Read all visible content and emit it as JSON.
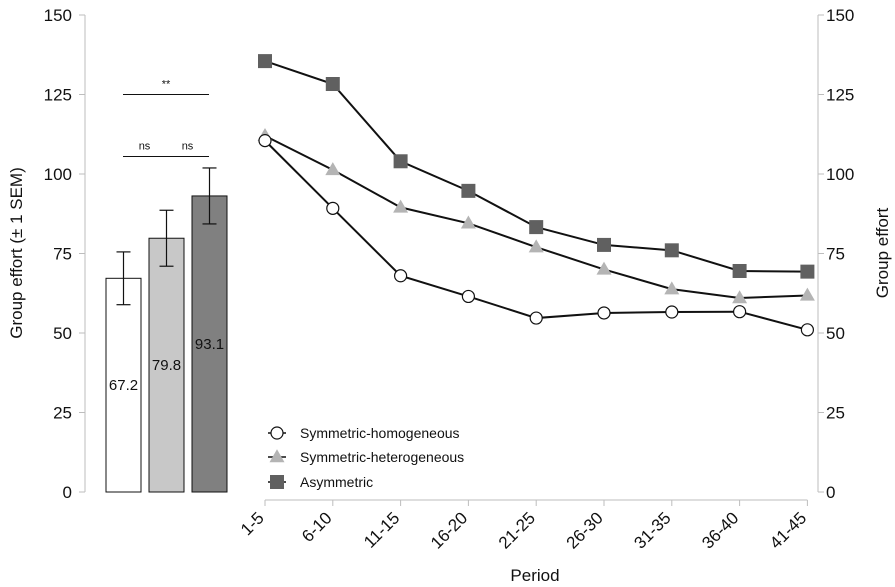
{
  "chart_data": [
    {
      "type": "bar",
      "ylabel": "Group effort (± 1 SEM)",
      "ylim": [
        0,
        150
      ],
      "yticks": [
        "0",
        "25",
        "50",
        "75",
        "100",
        "125",
        "150"
      ],
      "bars": [
        {
          "value": 67.2,
          "label": "67.2",
          "err_low": 58.9,
          "err_high": 75.5,
          "color": "#ffffff"
        },
        {
          "value": 79.8,
          "label": "79.8",
          "err_low": 71.0,
          "err_high": 88.6,
          "color": "#c8c8c8"
        },
        {
          "value": 93.1,
          "label": "93.1",
          "err_low": 84.3,
          "err_high": 101.9,
          "color": "#808080"
        }
      ],
      "significance": [
        {
          "label": "**",
          "from": 0,
          "to": 2,
          "y": 125
        },
        {
          "label": "ns",
          "from": 0,
          "to": 1,
          "y": 105.5
        },
        {
          "label": "ns",
          "from": 1,
          "to": 2,
          "y": 105.5
        }
      ]
    },
    {
      "type": "line",
      "xlabel": "Period",
      "ylabel": "Group effort",
      "ylim": [
        0,
        150
      ],
      "yticks": [
        "0",
        "25",
        "50",
        "75",
        "100",
        "125",
        "150"
      ],
      "categories": [
        "1-5",
        "6-10",
        "11-15",
        "16-20",
        "21-25",
        "26-30",
        "31-35",
        "36-40",
        "41-45"
      ],
      "series": [
        {
          "name": "Symmetric-homogeneous",
          "marker": "circle",
          "color": "#ffffff",
          "values": [
            110.5,
            89.2,
            68.0,
            61.5,
            54.7,
            56.3,
            56.6,
            56.7,
            51.0
          ]
        },
        {
          "name": "Symmetric-heterogeneous",
          "marker": "triangle",
          "color": "#b4b4b4",
          "values": [
            112.0,
            101.3,
            89.5,
            84.5,
            77.0,
            70.0,
            63.8,
            61.0,
            61.8
          ]
        },
        {
          "name": "Asymmetric",
          "marker": "square",
          "color": "#606060",
          "values": [
            135.5,
            128.3,
            104.0,
            94.7,
            83.3,
            77.7,
            76.0,
            69.5,
            69.3
          ]
        }
      ],
      "legend_position": "bottom-left"
    }
  ]
}
